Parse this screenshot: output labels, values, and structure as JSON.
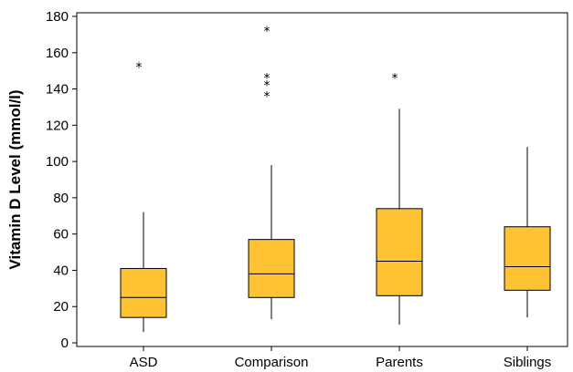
{
  "chart_data": {
    "type": "box",
    "title": "",
    "xlabel": "",
    "ylabel": "Vitamin D Level (mmol/l)",
    "ylim": [
      -2,
      182
    ],
    "yticks": [
      0,
      20,
      40,
      60,
      80,
      100,
      120,
      140,
      160,
      180
    ],
    "grid": false,
    "box_color": "#fec232",
    "outlier_marker": "*",
    "categories": [
      "ASD",
      "Comparison",
      "Parents",
      "Siblings"
    ],
    "boxes": [
      {
        "category": "ASD",
        "whisker_low": 6,
        "q1": 14,
        "median": 25,
        "q3": 41,
        "whisker_high": 72,
        "outliers": [
          154
        ]
      },
      {
        "category": "Comparison",
        "whisker_low": 13,
        "q1": 25,
        "median": 38,
        "q3": 57,
        "whisker_high": 98,
        "outliers": [
          138,
          144,
          148,
          174
        ]
      },
      {
        "category": "Parents",
        "whisker_low": 10,
        "q1": 26,
        "median": 45,
        "q3": 74,
        "whisker_high": 129,
        "outliers": [
          148
        ]
      },
      {
        "category": "Siblings",
        "whisker_low": 14,
        "q1": 29,
        "median": 42,
        "q3": 64,
        "whisker_high": 108,
        "outliers": []
      }
    ]
  }
}
